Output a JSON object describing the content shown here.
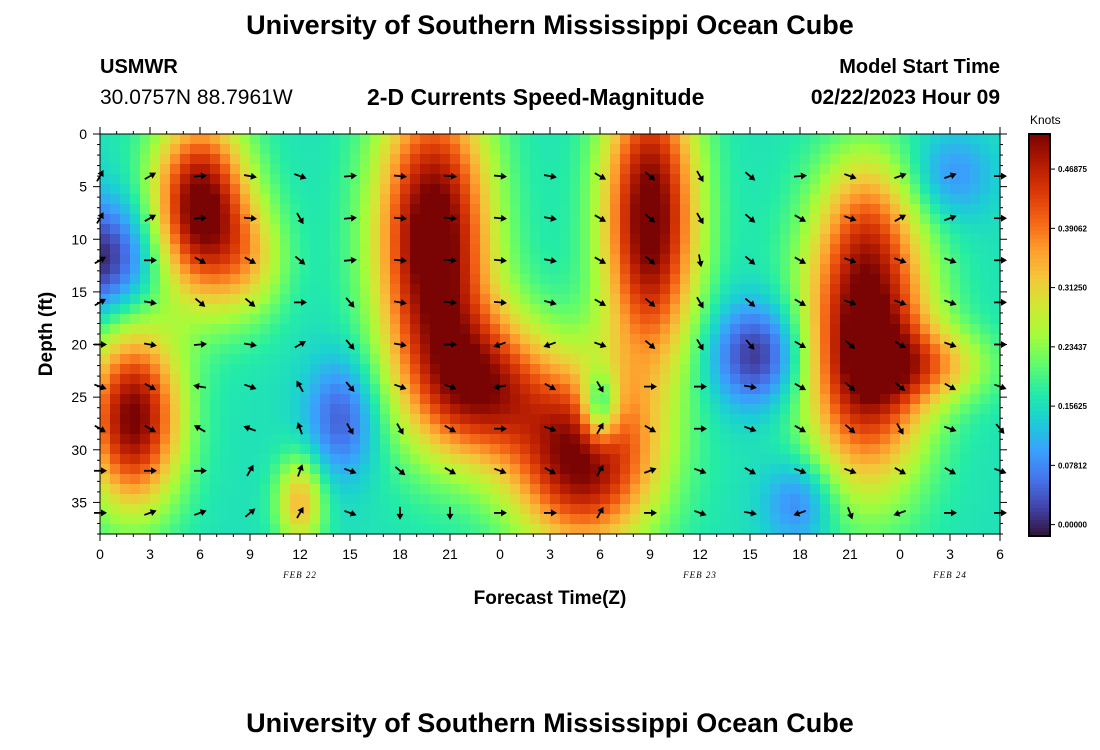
{
  "page": {
    "title": "University of Southern Mississippi Ocean Cube",
    "station_name": "USMWR",
    "station_coords": "30.0757N  88.7961W",
    "subtitle": "2-D Currents Speed-Magnitude",
    "model_start_label": "Model Start Time",
    "model_start_value": "02/22/2023 Hour 09",
    "second_title": "University of Southern Mississippi Ocean Cube"
  },
  "chart_data": {
    "type": "heatmap",
    "title": "2-D Currents Speed-Magnitude",
    "xlabel": "Forecast Time(Z)",
    "ylabel": "Depth (ft)",
    "x_tick_labels": [
      "0",
      "3",
      "6",
      "9",
      "12",
      "15",
      "18",
      "21",
      "0",
      "3",
      "6",
      "9",
      "12",
      "15",
      "18",
      "21",
      "0",
      "3",
      "6"
    ],
    "x_tick_hours": [
      0,
      3,
      6,
      9,
      12,
      15,
      18,
      21,
      24,
      27,
      30,
      33,
      36,
      39,
      42,
      45,
      48,
      51,
      54
    ],
    "x_range_hours": [
      0,
      54
    ],
    "date_labels": [
      {
        "text": "FEB 22",
        "hour": 12
      },
      {
        "text": "FEB 23",
        "hour": 36
      },
      {
        "text": "FEB 24",
        "hour": 51
      }
    ],
    "y_ticks": [
      0,
      5,
      10,
      15,
      20,
      25,
      30,
      35
    ],
    "y_range_ft": [
      0,
      38
    ],
    "y_inverted": true,
    "colorbar": {
      "label": "Knots",
      "tick_labels": [
        "0.46875",
        "0.39062",
        "0.31250",
        "0.23437",
        "0.15625",
        "0.07812",
        "0.00000"
      ],
      "tick_values": [
        0.46875,
        0.390625,
        0.3125,
        0.234375,
        0.15625,
        0.078125,
        0.0
      ],
      "range": [
        -0.015,
        0.515
      ],
      "colors": [
        "#30123b",
        "#4145ab",
        "#4675ed",
        "#39a2fc",
        "#1bcfd4",
        "#24eca6",
        "#61fc6c",
        "#a4fc3b",
        "#d1e834",
        "#f3c63a",
        "#fe9b2d",
        "#f36315",
        "#d93806",
        "#b11901",
        "#7a0403"
      ]
    },
    "speed_features": [
      {
        "t": 6,
        "d": 7,
        "sx": 2.0,
        "sy": 6,
        "amp": 0.38
      },
      {
        "t": 9,
        "d": 12,
        "sx": 1.6,
        "sy": 4,
        "amp": 0.12
      },
      {
        "t": 2,
        "d": 27,
        "sx": 2.0,
        "sy": 6,
        "amp": 0.36
      },
      {
        "t": 20,
        "d": 10,
        "sx": 2.4,
        "sy": 10,
        "amp": 0.4
      },
      {
        "t": 23,
        "d": 24,
        "sx": 2.8,
        "sy": 5,
        "amp": 0.28
      },
      {
        "t": 29,
        "d": 31,
        "sx": 3.0,
        "sy": 6,
        "amp": 0.36
      },
      {
        "t": 33,
        "d": 8,
        "sx": 2.0,
        "sy": 10,
        "amp": 0.38
      },
      {
        "t": 46,
        "d": 20,
        "sx": 2.6,
        "sy": 9,
        "amp": 0.4
      },
      {
        "t": 46,
        "d": 8,
        "sx": 2.0,
        "sy": 5,
        "amp": 0.1
      },
      {
        "t": 50,
        "d": 22,
        "sx": 2.5,
        "sy": 2.5,
        "amp": 0.14
      },
      {
        "t": 12,
        "d": 35,
        "sx": 1.0,
        "sy": 3,
        "amp": 0.18
      },
      {
        "t": 0,
        "d": 12,
        "sx": 2.5,
        "sy": 4,
        "amp": -0.17
      },
      {
        "t": 14.5,
        "d": 27,
        "sx": 1.5,
        "sy": 4,
        "amp": -0.12
      },
      {
        "t": 39.5,
        "d": 21,
        "sx": 2.0,
        "sy": 3.5,
        "amp": -0.16
      },
      {
        "t": 42,
        "d": 35,
        "sx": 1.5,
        "sy": 3,
        "amp": -0.1
      },
      {
        "t": 30,
        "d": 26,
        "sx": 0.8,
        "sy": 2.5,
        "amp": -0.22
      },
      {
        "t": 51,
        "d": 4,
        "sx": 1.8,
        "sy": 3,
        "amp": -0.08
      }
    ],
    "base_speed": 0.16,
    "vectors": {
      "times": [
        0,
        3,
        6,
        9,
        12,
        15,
        18,
        21,
        24,
        27,
        30,
        33,
        36,
        39,
        42,
        45,
        48,
        51,
        54
      ],
      "depths": [
        4,
        8,
        12,
        16,
        20,
        24,
        28,
        32,
        36
      ],
      "angles_deg": [
        [
          60,
          30,
          5,
          -10,
          -20,
          5,
          -5,
          -5,
          -5,
          -10,
          -30,
          -40,
          -60,
          -40,
          5,
          -20,
          20,
          20,
          0
        ],
        [
          60,
          30,
          5,
          -5,
          -60,
          5,
          -5,
          -5,
          -5,
          -10,
          -30,
          -40,
          -60,
          -40,
          -30,
          -20,
          30,
          20,
          0
        ],
        [
          30,
          0,
          -30,
          -30,
          -40,
          5,
          -5,
          -5,
          -5,
          -10,
          -30,
          -40,
          -80,
          -40,
          -30,
          -20,
          -20,
          -20,
          0
        ],
        [
          30,
          -10,
          -40,
          -40,
          0,
          -50,
          -10,
          -5,
          -5,
          -15,
          -30,
          -40,
          -60,
          -40,
          -30,
          -20,
          -20,
          -20,
          0
        ],
        [
          0,
          -10,
          5,
          -10,
          30,
          -50,
          -10,
          0,
          200,
          200,
          -20,
          -40,
          -60,
          -50,
          -30,
          -40,
          -30,
          -20,
          0
        ],
        [
          -20,
          -30,
          170,
          -20,
          120,
          -50,
          -20,
          -20,
          190,
          -30,
          -60,
          0,
          0,
          -10,
          -30,
          -40,
          -40,
          -30,
          -20
        ],
        [
          -30,
          -30,
          150,
          160,
          110,
          -60,
          -60,
          -30,
          0,
          -20,
          60,
          -30,
          0,
          -20,
          -30,
          -40,
          -60,
          -20,
          -50
        ],
        [
          0,
          0,
          0,
          60,
          70,
          -20,
          -40,
          -30,
          -20,
          -30,
          60,
          20,
          -20,
          -30,
          -20,
          -20,
          -30,
          -30,
          -20
        ],
        [
          0,
          20,
          20,
          40,
          60,
          -20,
          -90,
          -90,
          0,
          0,
          60,
          0,
          -20,
          -10,
          200,
          -70,
          200,
          0,
          0
        ]
      ]
    }
  }
}
